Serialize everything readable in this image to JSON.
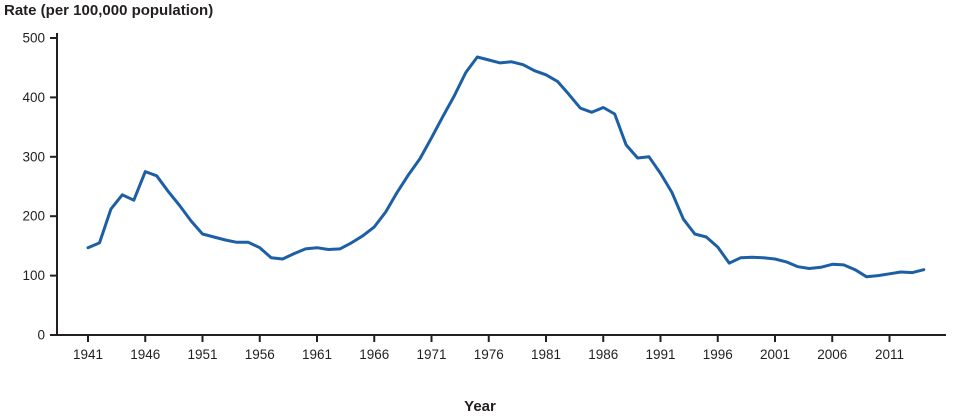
{
  "title": "Rate (per 100,000 population)",
  "xlabel": "Year",
  "chart_data": {
    "type": "line",
    "title": "Rate (per 100,000 population)",
    "xlabel": "Year",
    "ylabel": "Rate (per 100,000 population)",
    "line_color": "#1d5fa5",
    "axis_color": "#231f20",
    "grid": false,
    "legend": "none",
    "ylim": [
      0,
      500
    ],
    "y_ticks": [
      0,
      100,
      200,
      300,
      400,
      500
    ],
    "x_ticks": [
      1941,
      1946,
      1951,
      1956,
      1961,
      1966,
      1971,
      1976,
      1981,
      1986,
      1991,
      1996,
      2001,
      2006,
      2011
    ],
    "series": [
      {
        "name": "Rate per 100,000 population",
        "x": [
          1941,
          1942,
          1943,
          1944,
          1945,
          1946,
          1947,
          1948,
          1949,
          1950,
          1951,
          1952,
          1953,
          1954,
          1955,
          1956,
          1957,
          1958,
          1959,
          1960,
          1961,
          1962,
          1963,
          1964,
          1965,
          1966,
          1967,
          1968,
          1969,
          1970,
          1971,
          1972,
          1973,
          1974,
          1975,
          1976,
          1977,
          1978,
          1979,
          1980,
          1981,
          1982,
          1983,
          1984,
          1985,
          1986,
          1987,
          1988,
          1989,
          1990,
          1991,
          1992,
          1993,
          1994,
          1995,
          1996,
          1997,
          1998,
          1999,
          2000,
          2001,
          2002,
          2003,
          2004,
          2005,
          2006,
          2007,
          2008,
          2009,
          2010,
          2011,
          2012,
          2013,
          2014
        ],
        "y": [
          147,
          155,
          212,
          236,
          227,
          275,
          268,
          242,
          218,
          192,
          170,
          165,
          160,
          156,
          156,
          147,
          130,
          128,
          137,
          145,
          147,
          144,
          145,
          155,
          167,
          182,
          207,
          240,
          270,
          297,
          332,
          368,
          403,
          442,
          468,
          463,
          458,
          460,
          455,
          445,
          438,
          427,
          405,
          382,
          375,
          383,
          372,
          320,
          298,
          300,
          272,
          240,
          195,
          170,
          165,
          148,
          121,
          130,
          131,
          130,
          128,
          123,
          115,
          112,
          114,
          119,
          118,
          110,
          98,
          100,
          103,
          106,
          105,
          110
        ]
      }
    ]
  }
}
